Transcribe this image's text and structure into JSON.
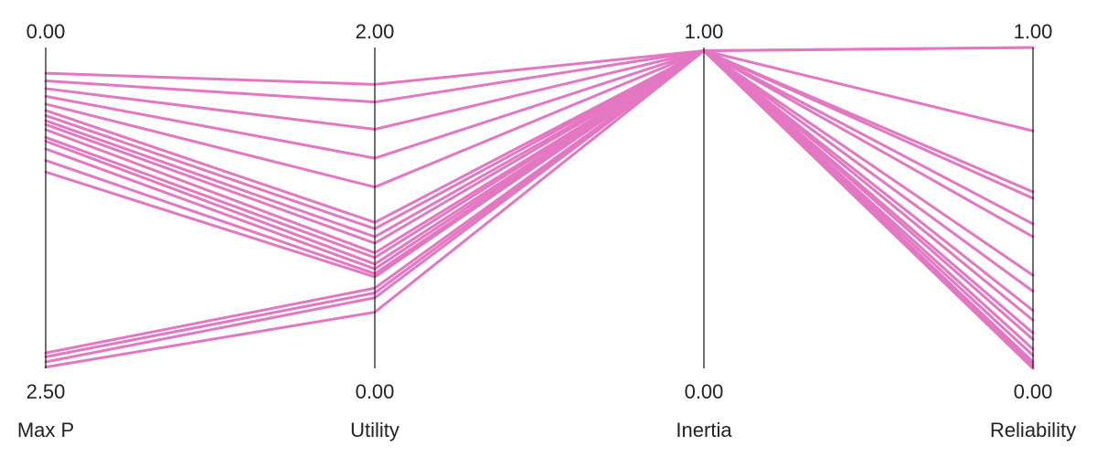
{
  "chart_data": {
    "type": "parallel_coordinates",
    "line_color": "#e377c2",
    "grid": false,
    "axes": [
      {
        "name": "Max P",
        "top": 0.0,
        "bottom": 2.5,
        "top_label": "0.00",
        "bottom_label": "2.50"
      },
      {
        "name": "Utility",
        "top": 2.0,
        "bottom": 0.0,
        "top_label": "2.00",
        "bottom_label": "0.00"
      },
      {
        "name": "Inertia",
        "top": 1.0,
        "bottom": 0.0,
        "top_label": "1.00",
        "bottom_label": "0.00"
      },
      {
        "name": "Reliability",
        "top": 1.0,
        "bottom": 0.0,
        "top_label": "1.00",
        "bottom_label": "0.00"
      }
    ],
    "rows": [
      {
        "max_p": 0.2,
        "utility": 1.77,
        "inertia": 0.99,
        "reliability": 1.0
      },
      {
        "max_p": 0.26,
        "utility": 1.66,
        "inertia": 0.99,
        "reliability": 1.0
      },
      {
        "max_p": 0.32,
        "utility": 1.49,
        "inertia": 0.99,
        "reliability": 0.74
      },
      {
        "max_p": 0.38,
        "utility": 1.31,
        "inertia": 0.99,
        "reliability": 0.55
      },
      {
        "max_p": 0.44,
        "utility": 1.13,
        "inertia": 0.99,
        "reliability": 0.53
      },
      {
        "max_p": 0.49,
        "utility": 0.91,
        "inertia": 0.99,
        "reliability": 0.45
      },
      {
        "max_p": 0.53,
        "utility": 0.87,
        "inertia": 0.99,
        "reliability": 0.41
      },
      {
        "max_p": 0.57,
        "utility": 0.82,
        "inertia": 0.99,
        "reliability": 0.29
      },
      {
        "max_p": 0.6,
        "utility": 0.78,
        "inertia": 0.99,
        "reliability": 0.24
      },
      {
        "max_p": 0.64,
        "utility": 0.72,
        "inertia": 0.99,
        "reliability": 0.18
      },
      {
        "max_p": 0.7,
        "utility": 0.69,
        "inertia": 0.99,
        "reliability": 0.15
      },
      {
        "max_p": 0.73,
        "utility": 0.65,
        "inertia": 0.99,
        "reliability": 0.11
      },
      {
        "max_p": 0.79,
        "utility": 0.62,
        "inertia": 0.99,
        "reliability": 0.09
      },
      {
        "max_p": 0.88,
        "utility": 0.59,
        "inertia": 0.99,
        "reliability": 0.06
      },
      {
        "max_p": 0.97,
        "utility": 0.57,
        "inertia": 0.99,
        "reliability": 0.04
      },
      {
        "max_p": 2.38,
        "utility": 0.5,
        "inertia": 0.99,
        "reliability": 0.0
      },
      {
        "max_p": 2.41,
        "utility": 0.47,
        "inertia": 0.99,
        "reliability": 0.02
      },
      {
        "max_p": 2.45,
        "utility": 0.44,
        "inertia": 0.99,
        "reliability": 0.0
      },
      {
        "max_p": 2.49,
        "utility": 0.35,
        "inertia": 0.99,
        "reliability": 0.01
      }
    ]
  }
}
